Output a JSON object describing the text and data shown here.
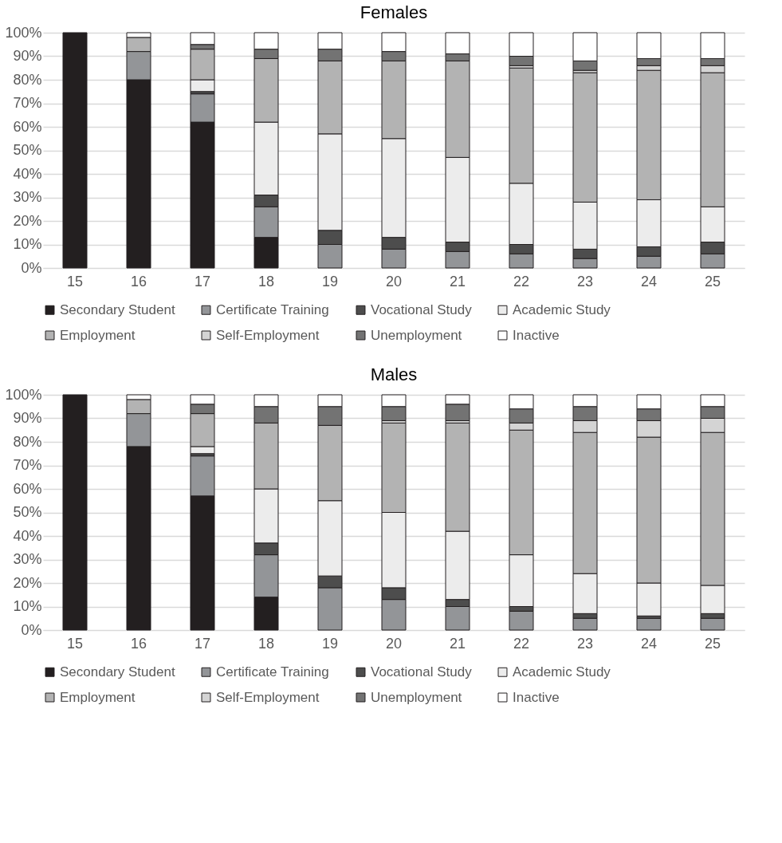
{
  "chart_data": [
    {
      "type": "bar",
      "title": "Females",
      "stacked": true,
      "legend": "bottom",
      "grid": "y",
      "categories": [
        "15",
        "16",
        "17",
        "18",
        "19",
        "20",
        "21",
        "22",
        "23",
        "24",
        "25"
      ],
      "ylim": [
        0,
        100
      ],
      "yticks": [
        {
          "value": 0,
          "label": "0%"
        },
        {
          "value": 10,
          "label": "10%"
        },
        {
          "value": 20,
          "label": "20%"
        },
        {
          "value": 30,
          "label": "30%"
        },
        {
          "value": 40,
          "label": "40%"
        },
        {
          "value": 50,
          "label": "50%"
        },
        {
          "value": 60,
          "label": "60%"
        },
        {
          "value": 70,
          "label": "70%"
        },
        {
          "value": 80,
          "label": "80%"
        },
        {
          "value": 90,
          "label": "90%"
        },
        {
          "value": 100,
          "label": "100%"
        }
      ],
      "series": [
        {
          "name": "Secondary Student",
          "color": "#231f20",
          "values": [
            100,
            80,
            62,
            13,
            0,
            0,
            0,
            0,
            0,
            0,
            0
          ]
        },
        {
          "name": "Certificate Training",
          "color": "#939598",
          "values": [
            0,
            12,
            12,
            13,
            10,
            8,
            7,
            6,
            4,
            5,
            6
          ]
        },
        {
          "name": "Vocational Study",
          "color": "#4d4d4d",
          "values": [
            0,
            0,
            1,
            5,
            6,
            5,
            4,
            4,
            4,
            4,
            5
          ]
        },
        {
          "name": "Academic Study",
          "color": "#ececec",
          "values": [
            0,
            0,
            5,
            31,
            41,
            42,
            36,
            26,
            20,
            20,
            15
          ]
        },
        {
          "name": "Employment",
          "color": "#b3b3b3",
          "values": [
            0,
            6,
            13,
            27,
            31,
            33,
            41,
            49,
            55,
            55,
            57
          ]
        },
        {
          "name": "Self-Employment",
          "color": "#d4d4d4",
          "values": [
            0,
            0,
            0,
            0,
            0,
            0,
            0,
            1,
            1,
            2,
            3
          ]
        },
        {
          "name": "Unemployment",
          "color": "#737373",
          "values": [
            0,
            0,
            2,
            4,
            5,
            4,
            3,
            4,
            4,
            3,
            3
          ]
        },
        {
          "name": "Inactive",
          "color": "#ffffff",
          "values": [
            0,
            2,
            5,
            7,
            7,
            8,
            9,
            10,
            12,
            11,
            11
          ]
        }
      ]
    },
    {
      "type": "bar",
      "title": "Males",
      "stacked": true,
      "legend": "bottom",
      "grid": "y",
      "categories": [
        "15",
        "16",
        "17",
        "18",
        "19",
        "20",
        "21",
        "22",
        "23",
        "24",
        "25"
      ],
      "ylim": [
        0,
        100
      ],
      "yticks": [
        {
          "value": 0,
          "label": "0%"
        },
        {
          "value": 10,
          "label": "10%"
        },
        {
          "value": 20,
          "label": "20%"
        },
        {
          "value": 30,
          "label": "30%"
        },
        {
          "value": 40,
          "label": "40%"
        },
        {
          "value": 50,
          "label": "50%"
        },
        {
          "value": 60,
          "label": "60%"
        },
        {
          "value": 70,
          "label": "70%"
        },
        {
          "value": 80,
          "label": "80%"
        },
        {
          "value": 90,
          "label": "90%"
        },
        {
          "value": 100,
          "label": "100%"
        }
      ],
      "series": [
        {
          "name": "Secondary Student",
          "color": "#231f20",
          "values": [
            100,
            78,
            57,
            14,
            0,
            0,
            0,
            0,
            0,
            0,
            0
          ]
        },
        {
          "name": "Certificate Training",
          "color": "#939598",
          "values": [
            0,
            14,
            17,
            18,
            18,
            13,
            10,
            8,
            5,
            5,
            5
          ]
        },
        {
          "name": "Vocational Study",
          "color": "#4d4d4d",
          "values": [
            0,
            0,
            1,
            5,
            5,
            5,
            3,
            2,
            2,
            1,
            2
          ]
        },
        {
          "name": "Academic Study",
          "color": "#ececec",
          "values": [
            0,
            0,
            3,
            23,
            32,
            32,
            29,
            22,
            17,
            14,
            12
          ]
        },
        {
          "name": "Employment",
          "color": "#b3b3b3",
          "values": [
            0,
            6,
            14,
            28,
            32,
            38,
            46,
            53,
            60,
            62,
            65
          ]
        },
        {
          "name": "Self-Employment",
          "color": "#d4d4d4",
          "values": [
            0,
            0,
            0,
            0,
            0,
            1,
            1,
            3,
            5,
            7,
            6
          ]
        },
        {
          "name": "Unemployment",
          "color": "#737373",
          "values": [
            0,
            0,
            4,
            7,
            8,
            6,
            7,
            6,
            6,
            5,
            5
          ]
        },
        {
          "name": "Inactive",
          "color": "#ffffff",
          "values": [
            0,
            2,
            4,
            5,
            5,
            5,
            4,
            6,
            5,
            6,
            5
          ]
        }
      ]
    }
  ]
}
